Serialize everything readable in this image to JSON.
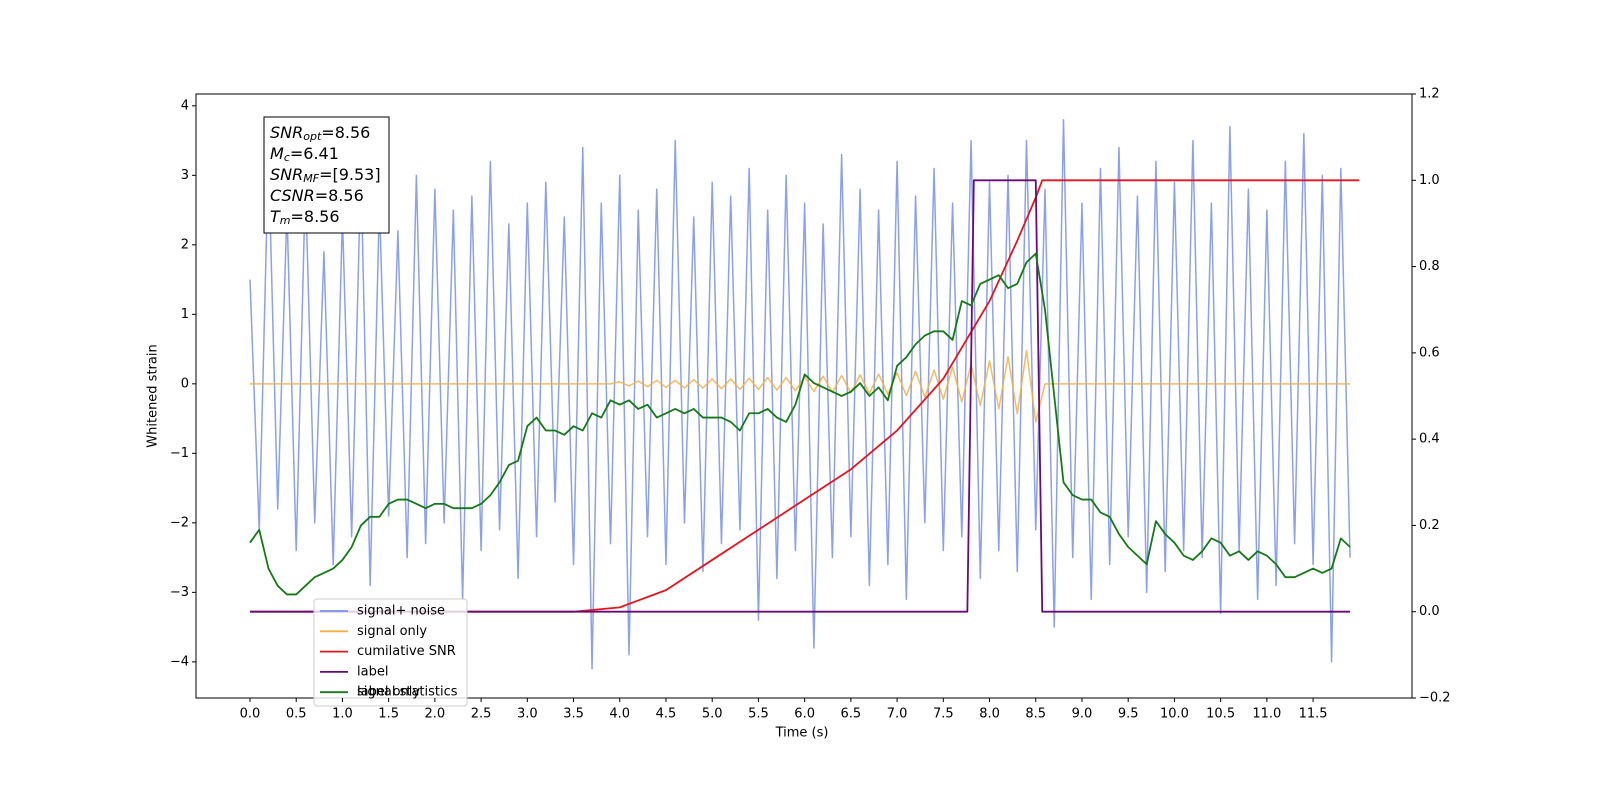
{
  "chart_data": {
    "type": "line",
    "xlabel": "Time (s)",
    "ylabel": "Whitened strain",
    "xlim": [
      -0.584,
      12.57
    ],
    "ylim": [
      -4.52,
      4.17
    ],
    "y2lim": [
      -0.2,
      1.2
    ],
    "xticks": [
      {
        "value": 0,
        "label": "0.0"
      },
      {
        "value": 0.5,
        "label": "0.5"
      },
      {
        "value": 1,
        "label": "1.0"
      },
      {
        "value": 1.5,
        "label": "1.5"
      },
      {
        "value": 2,
        "label": "2.0"
      },
      {
        "value": 2.5,
        "label": "2.5"
      },
      {
        "value": 3,
        "label": "3.0"
      },
      {
        "value": 3.5,
        "label": "3.5"
      },
      {
        "value": 4,
        "label": "4.0"
      },
      {
        "value": 4.5,
        "label": "4.5"
      },
      {
        "value": 5,
        "label": "5.0"
      },
      {
        "value": 5.5,
        "label": "5.5"
      },
      {
        "value": 6,
        "label": "6.0"
      },
      {
        "value": 6.5,
        "label": "6.5"
      },
      {
        "value": 7,
        "label": "7.0"
      },
      {
        "value": 7.5,
        "label": "7.5"
      },
      {
        "value": 8,
        "label": "8.0"
      },
      {
        "value": 8.5,
        "label": "8.5"
      },
      {
        "value": 9,
        "label": "9.0"
      },
      {
        "value": 9.5,
        "label": "9.5"
      },
      {
        "value": 10,
        "label": "10.0"
      },
      {
        "value": 10.5,
        "label": "10.5"
      },
      {
        "value": 11,
        "label": "11.0"
      },
      {
        "value": 11.5,
        "label": "11.5"
      }
    ],
    "yticks": [
      {
        "value": -4,
        "label": "−4"
      },
      {
        "value": -3,
        "label": "−3"
      },
      {
        "value": -2,
        "label": "−2"
      },
      {
        "value": -1,
        "label": "−1"
      },
      0,
      1,
      2,
      3,
      4
    ],
    "y2ticks": [
      {
        "value": -0.2,
        "label": "−0.2"
      },
      {
        "value": 0,
        "label": "0.0"
      },
      {
        "value": 0.2,
        "label": "0.2"
      },
      {
        "value": 0.4,
        "label": "0.4"
      },
      {
        "value": 0.6,
        "label": "0.6"
      },
      {
        "value": 0.8,
        "label": "0.8"
      },
      {
        "value": 1,
        "label": "1.0"
      },
      {
        "value": 1.2,
        "label": "1.2"
      }
    ],
    "x": [
      0,
      0.1,
      0.2,
      0.3,
      0.4,
      0.5,
      0.6,
      0.7,
      0.8,
      0.9,
      1,
      1.1,
      1.2,
      1.3,
      1.4,
      1.5,
      1.6,
      1.7,
      1.8,
      1.9,
      2,
      2.1,
      2.2,
      2.3,
      2.4,
      2.5,
      2.6,
      2.7,
      2.8,
      2.9,
      3,
      3.1,
      3.2,
      3.3,
      3.4,
      3.5,
      3.6,
      3.7,
      3.8,
      3.9,
      4,
      4.1,
      4.2,
      4.3,
      4.4,
      4.5,
      4.6,
      4.7,
      4.8,
      4.9,
      5,
      5.1,
      5.2,
      5.3,
      5.4,
      5.5,
      5.6,
      5.7,
      5.8,
      5.9,
      6,
      6.1,
      6.2,
      6.3,
      6.4,
      6.5,
      6.6,
      6.7,
      6.8,
      6.9,
      7,
      7.1,
      7.2,
      7.3,
      7.4,
      7.5,
      7.6,
      7.7,
      7.8,
      7.9,
      8,
      8.1,
      8.2,
      8.3,
      8.4,
      8.5,
      8.6,
      8.7,
      8.8,
      8.9,
      9,
      9.1,
      9.2,
      9.3,
      9.4,
      9.5,
      9.6,
      9.7,
      9.8,
      9.9,
      10,
      10.1,
      10.2,
      10.3,
      10.4,
      10.5,
      10.6,
      10.7,
      10.8,
      10.9,
      11,
      11.1,
      11.2,
      11.3,
      11.4,
      11.5,
      11.6,
      11.7,
      11.8,
      11.9
    ],
    "series": [
      {
        "name": "signal+ noise",
        "color": "#7890e8",
        "axis": "y",
        "width": 1.5,
        "values": [
          1.5,
          -2.1,
          3.3,
          -1.8,
          2.5,
          -2.4,
          2.9,
          -2.0,
          1.9,
          -2.6,
          2.4,
          -2.2,
          3.1,
          -2.9,
          2.6,
          -1.9,
          2.2,
          -2.5,
          3.0,
          -2.3,
          2.8,
          -2.0,
          2.5,
          -3.1,
          2.7,
          -2.4,
          3.2,
          -2.1,
          2.3,
          -2.8,
          2.6,
          -2.2,
          2.9,
          -1.7,
          2.4,
          -2.6,
          3.4,
          -4.1,
          2.6,
          -2.3,
          3.0,
          -3.9,
          2.5,
          -2.2,
          2.8,
          -2.6,
          3.5,
          -2.0,
          2.4,
          -2.7,
          2.9,
          -2.3,
          2.7,
          -2.1,
          3.1,
          -3.4,
          2.5,
          -2.8,
          3.0,
          -2.4,
          2.6,
          -3.8,
          2.3,
          -2.5,
          3.3,
          -2.2,
          2.8,
          -2.9,
          2.5,
          -2.6,
          3.2,
          -3.1,
          2.7,
          -2.0,
          3.1,
          -2.4,
          2.6,
          -2.2,
          3.5,
          -2.8,
          2.9,
          -2.4,
          3.0,
          -2.7,
          3.5,
          -2.1,
          2.8,
          -3.5,
          3.8,
          -2.5,
          2.6,
          -3.1,
          3.1,
          -2.6,
          3.4,
          -2.2,
          2.7,
          -3.0,
          3.2,
          -2.7,
          2.9,
          -2.4,
          3.5,
          -2.5,
          2.6,
          -3.3,
          3.7,
          -2.4,
          2.8,
          -3.1,
          2.5,
          -2.9,
          3.2,
          -2.3,
          3.6,
          -2.6,
          3.0,
          -4.0,
          3.1,
          -2.5
        ]
      },
      {
        "name": "signal only",
        "color": "#f5b041",
        "axis": "y",
        "width": 1.5,
        "values": [
          0,
          0,
          0,
          0,
          0,
          0,
          0,
          0,
          0,
          0,
          0,
          0,
          0,
          0,
          0,
          0,
          0,
          0,
          0,
          0,
          0,
          0,
          0,
          0,
          0,
          0,
          0,
          0,
          0,
          0,
          0,
          0,
          0,
          0,
          0,
          0,
          0,
          0,
          0,
          0,
          0.03,
          -0.03,
          0.04,
          -0.04,
          0.05,
          -0.05,
          0.05,
          -0.06,
          0.06,
          -0.06,
          0.07,
          -0.07,
          0.07,
          -0.08,
          0.08,
          -0.08,
          0.09,
          -0.09,
          0.09,
          -0.1,
          0.1,
          -0.11,
          0.11,
          -0.12,
          0.12,
          -0.13,
          0.13,
          -0.14,
          0.14,
          -0.15,
          0.16,
          -0.17,
          0.18,
          -0.19,
          0.2,
          -0.22,
          0.24,
          -0.26,
          0.28,
          -0.31,
          0.33,
          -0.36,
          0.39,
          -0.43,
          0.48,
          -0.55,
          0,
          0,
          0,
          0,
          0,
          0,
          0,
          0,
          0,
          0,
          0,
          0,
          0,
          0,
          0,
          0,
          0,
          0,
          0,
          0,
          0,
          0,
          0,
          0,
          0,
          0,
          0,
          0,
          0,
          0,
          0,
          0,
          0,
          0
        ]
      },
      {
        "name": "cumilative SNR",
        "color": "#e8141c",
        "axis": "y2",
        "width": 1.8,
        "x": [
          0,
          3.5,
          4.0,
          4.5,
          5.0,
          5.5,
          6.0,
          6.5,
          7.0,
          7.5,
          8.0,
          8.3,
          8.5,
          8.57,
          12.0
        ],
        "values": [
          0,
          0,
          0.01,
          0.05,
          0.12,
          0.19,
          0.26,
          0.33,
          0.42,
          0.54,
          0.72,
          0.86,
          0.96,
          1.0,
          1.0
        ]
      },
      {
        "name": "label",
        "color": "#6a0a7a",
        "axis": "y2",
        "width": 1.8,
        "x": [
          0,
          7.76,
          7.83,
          8.5,
          8.57,
          11.9
        ],
        "values": [
          0,
          0,
          1,
          1,
          0,
          0
        ]
      },
      {
        "name": "signal statistics",
        "color": "#157a15",
        "axis": "y2",
        "width": 1.8,
        "values": [
          0.16,
          0.19,
          0.1,
          0.06,
          0.04,
          0.04,
          0.06,
          0.08,
          0.09,
          0.1,
          0.12,
          0.15,
          0.2,
          0.22,
          0.22,
          0.25,
          0.26,
          0.26,
          0.25,
          0.24,
          0.25,
          0.25,
          0.24,
          0.24,
          0.24,
          0.25,
          0.27,
          0.3,
          0.34,
          0.35,
          0.43,
          0.45,
          0.42,
          0.42,
          0.41,
          0.43,
          0.42,
          0.46,
          0.45,
          0.49,
          0.48,
          0.49,
          0.47,
          0.48,
          0.45,
          0.46,
          0.47,
          0.46,
          0.47,
          0.45,
          0.45,
          0.45,
          0.44,
          0.42,
          0.46,
          0.46,
          0.47,
          0.45,
          0.44,
          0.48,
          0.55,
          0.53,
          0.52,
          0.51,
          0.5,
          0.51,
          0.53,
          0.5,
          0.52,
          0.49,
          0.57,
          0.59,
          0.62,
          0.64,
          0.65,
          0.65,
          0.63,
          0.72,
          0.71,
          0.76,
          0.77,
          0.78,
          0.75,
          0.76,
          0.81,
          0.83,
          0.7,
          0.5,
          0.3,
          0.27,
          0.26,
          0.26,
          0.23,
          0.22,
          0.18,
          0.15,
          0.13,
          0.11,
          0.21,
          0.18,
          0.16,
          0.13,
          0.12,
          0.14,
          0.17,
          0.16,
          0.13,
          0.14,
          0.12,
          0.14,
          0.13,
          0.11,
          0.08,
          0.08,
          0.09,
          0.1,
          0.09,
          0.1,
          0.17,
          0.15
        ]
      }
    ],
    "hidden_legend": "label only",
    "stats": [
      {
        "name": "SNR",
        "sub": "opt",
        "text": "=8.56"
      },
      {
        "name": "M",
        "sub": "c",
        "text": "=6.41"
      },
      {
        "name": "SNR",
        "sub": "MF",
        "text": "=[9.53]"
      },
      {
        "name": "CSNR",
        "text": "=8.56"
      },
      {
        "name": "T",
        "sub": "m",
        "text": "=8.56"
      }
    ]
  }
}
